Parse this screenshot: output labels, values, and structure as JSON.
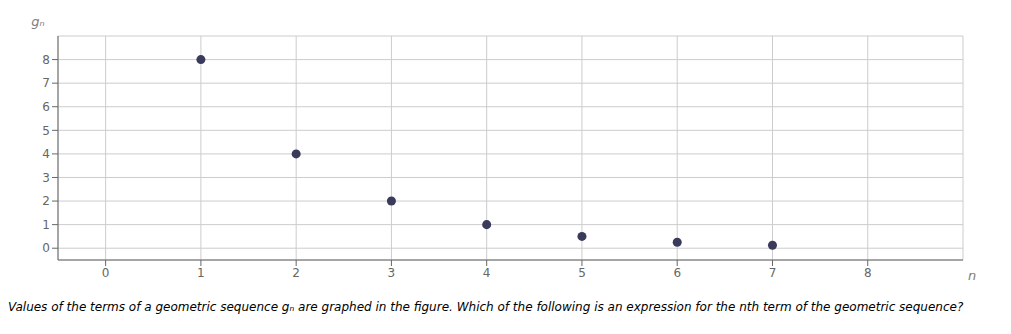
{
  "chart_data": {
    "type": "scatter",
    "xlabel": "n",
    "ylabel": "gₙ",
    "annotations": [
      "Values of the terms of a geometric sequence gₙ are graphed in the figure. Which of the following is an expression for the nth term of the geometric sequence?"
    ],
    "x": [
      1,
      2,
      3,
      4,
      5,
      6,
      7
    ],
    "values": [
      8,
      4,
      2,
      1,
      0.5,
      0.25,
      0.125
    ],
    "color": "#3a3a5a",
    "xlim": [
      -0.5,
      9.0
    ],
    "ylim": [
      -0.5,
      9.0
    ],
    "xticks": [
      0,
      1,
      2,
      3,
      4,
      5,
      6,
      7,
      8
    ],
    "yticks": [
      0,
      1,
      2,
      3,
      4,
      5,
      6,
      7,
      8
    ],
    "grid": true
  }
}
